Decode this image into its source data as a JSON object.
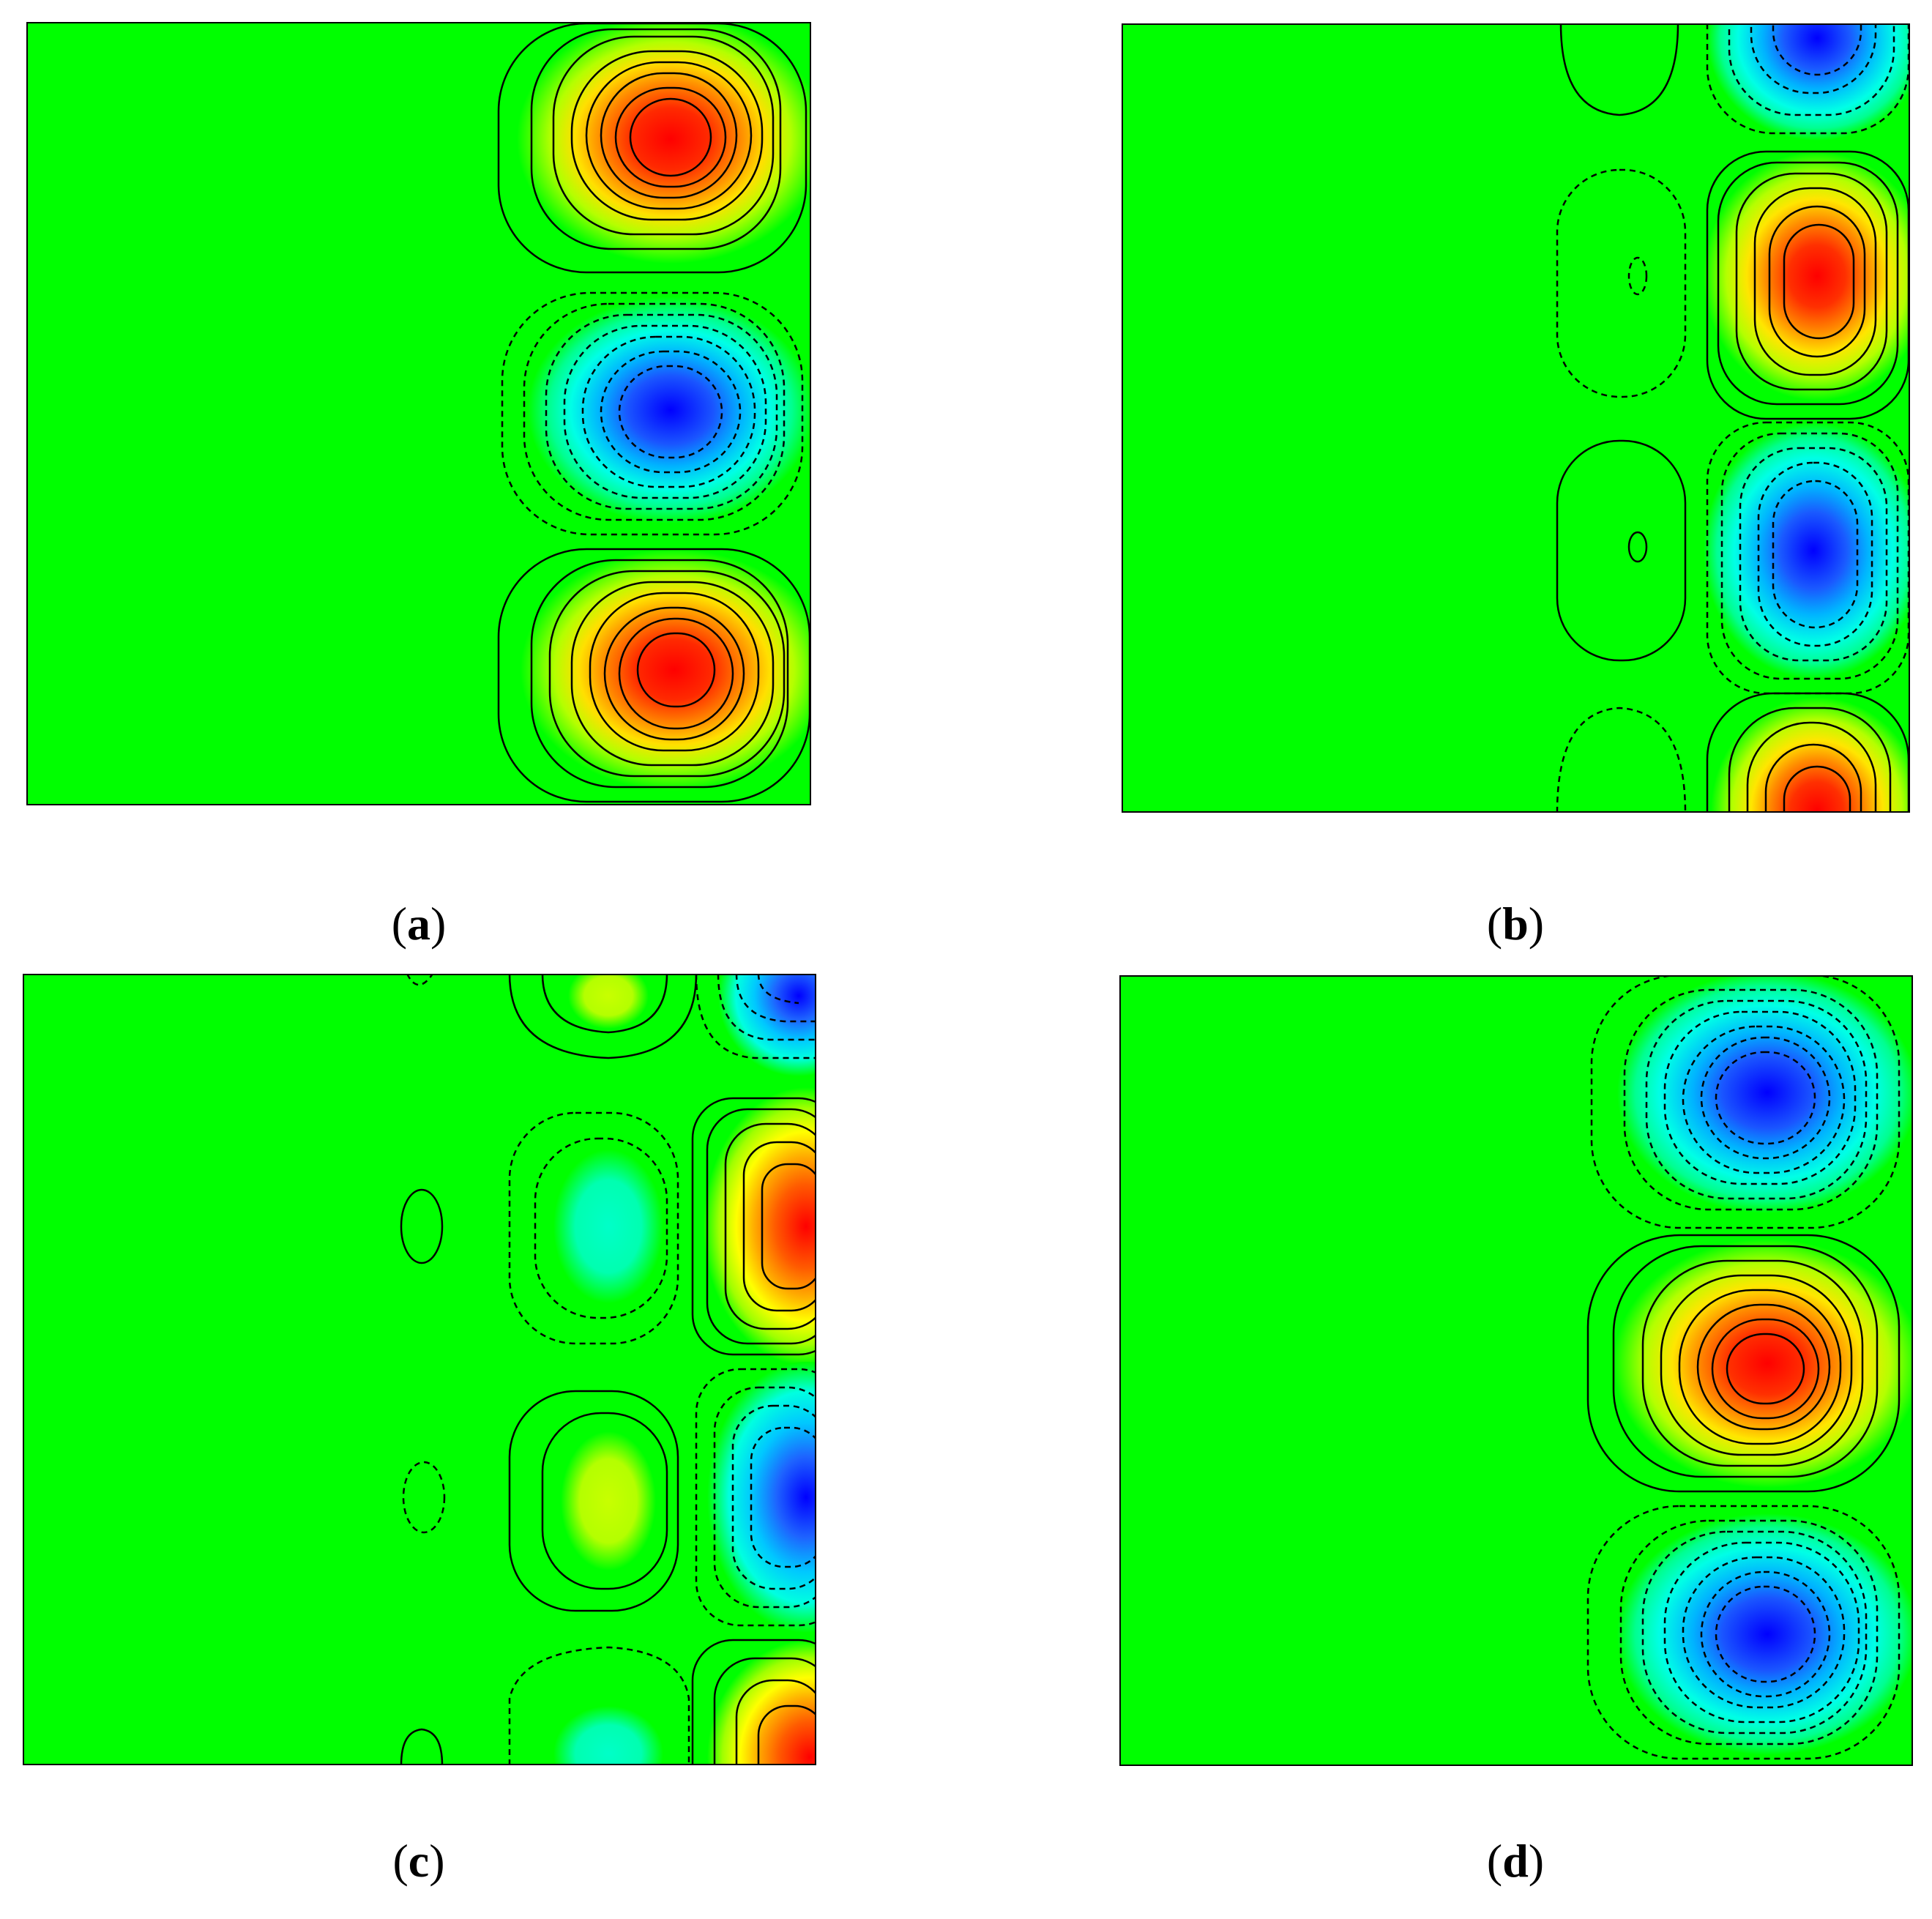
{
  "figure": {
    "background": "#00ff00",
    "colors": {
      "positive_peak": "#ff0000",
      "negative_peak": "#0000ff",
      "contour_line": "#000000"
    },
    "panels": [
      {
        "id": "a",
        "caption": "a",
        "description_kind": "contour-plot"
      },
      {
        "id": "b",
        "caption": "b",
        "description_kind": "contour-plot"
      },
      {
        "id": "c",
        "caption": "c",
        "description_kind": "contour-plot"
      },
      {
        "id": "d",
        "caption": "d",
        "description_kind": "contour-plot"
      }
    ],
    "caption_open": "(",
    "caption_close": ")"
  }
}
